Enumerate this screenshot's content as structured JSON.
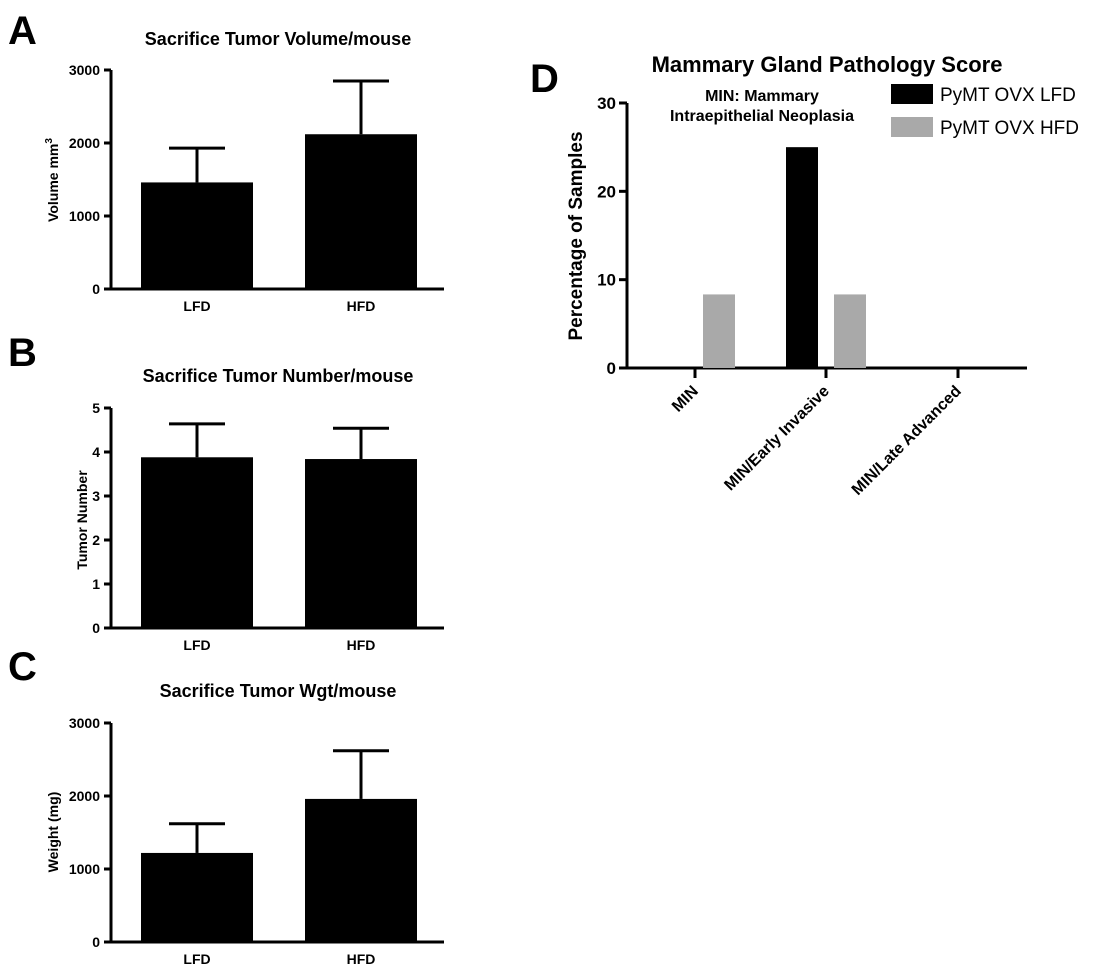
{
  "panels": {
    "A": {
      "letter": "A"
    },
    "B": {
      "letter": "B"
    },
    "C": {
      "letter": "C"
    },
    "D": {
      "letter": "D"
    }
  },
  "chart_data": [
    {
      "id": "A",
      "type": "bar",
      "title": "Sacrifice Tumor Volume/mouse",
      "ylabel": "Volume mm",
      "ylabel_sup": "3",
      "categories": [
        "LFD",
        "HFD"
      ],
      "values": [
        1460,
        2120
      ],
      "errors": [
        470,
        730
      ],
      "ylim": [
        0,
        3000
      ],
      "yticks": [
        "0",
        "1000",
        "2000",
        "3000"
      ],
      "colors": [
        "#000000",
        "#000000"
      ]
    },
    {
      "id": "B",
      "type": "bar",
      "title": "Sacrifice Tumor Number/mouse",
      "ylabel": "Tumor Number",
      "categories": [
        "LFD",
        "HFD"
      ],
      "values": [
        3.88,
        3.84
      ],
      "errors": [
        0.76,
        0.7
      ],
      "ylim": [
        0,
        5
      ],
      "yticks": [
        "0",
        "1",
        "2",
        "3",
        "4",
        "5"
      ],
      "colors": [
        "#000000",
        "#000000"
      ]
    },
    {
      "id": "C",
      "type": "bar",
      "title": "Sacrifice Tumor Wgt/mouse",
      "ylabel": "Weight (mg)",
      "categories": [
        "LFD",
        "HFD"
      ],
      "values": [
        1220,
        1960
      ],
      "errors": [
        400,
        660
      ],
      "ylim": [
        0,
        3000
      ],
      "yticks": [
        "0",
        "1000",
        "2000",
        "3000"
      ],
      "colors": [
        "#000000",
        "#000000"
      ]
    },
    {
      "id": "D",
      "type": "bar",
      "title": "Mammary Gland Pathology Score",
      "ylabel": "Percentage of Samples",
      "categories": [
        "MIN",
        "MIN/Early Invasive",
        "MIN/Late Advanced"
      ],
      "series": [
        {
          "name": "PyMT OVX LFD",
          "values": [
            0,
            25,
            0
          ],
          "color": "#000000"
        },
        {
          "name": "PyMT OVX HFD",
          "values": [
            8.33,
            8.33,
            0
          ],
          "color": "#a9a9a9"
        }
      ],
      "ylim": [
        0,
        30
      ],
      "yticks": [
        "0",
        "10",
        "20",
        "30"
      ],
      "annotation": [
        "MIN: Mammary",
        "Intraepithelial Neoplasia"
      ],
      "legend": "top-right"
    }
  ]
}
